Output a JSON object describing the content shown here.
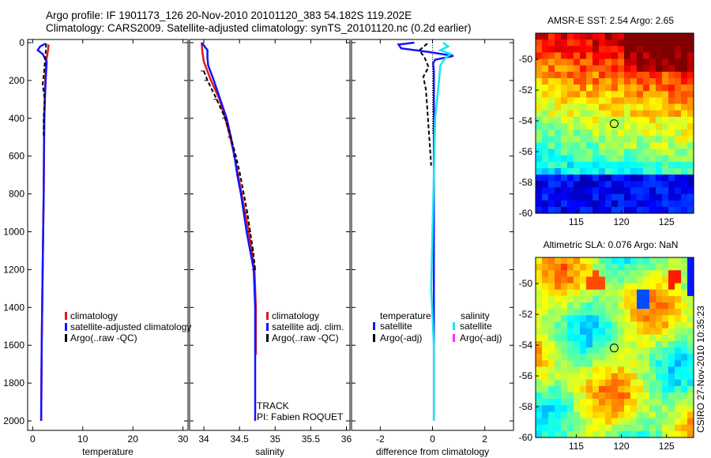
{
  "header": {
    "line1": "Argo profile: IF 1901173_126 20-Nov-2010 20101120_383 54.182S 119.202E",
    "line2": "Climatology: CARS2009. Satellite-adjusted climatology: synTS_20101120.nc (0.2d earlier)"
  },
  "side_label": "CSIRO 27-Nov-2010 10:35:23",
  "colors": {
    "clim": "#e01a1a",
    "sat": "#1414ff",
    "argo": "#000000",
    "sal_sat": "#19e5ef",
    "sal_argo": "#ff2bff"
  },
  "chart_data": [
    {
      "type": "line",
      "id": "temperature",
      "xlabel": "temperature",
      "xlim": [
        -1,
        31
      ],
      "ylim": [
        2050,
        0
      ],
      "xticks": [
        "0",
        "10",
        "20",
        "30"
      ],
      "xtick_values": [
        0,
        10,
        20,
        30
      ],
      "yticks": [
        "0",
        "200",
        "400",
        "600",
        "800",
        "1000",
        "1200",
        "1400",
        "1600",
        "1800",
        "2000"
      ],
      "ytick_values": [
        0,
        200,
        400,
        600,
        800,
        1000,
        1200,
        1400,
        1600,
        1800,
        2000
      ],
      "series": [
        {
          "name": "climatology",
          "style": "clim",
          "depth": [
            10,
            50,
            100,
            150,
            200,
            300,
            500,
            800,
            1200,
            1600,
            2000
          ],
          "values": [
            3.2,
            3.0,
            2.7,
            2.6,
            2.5,
            2.4,
            2.3,
            2.2,
            2.0,
            1.8,
            1.7
          ]
        },
        {
          "name": "satellite-adjusted climatology",
          "style": "sat",
          "depth": [
            5,
            20,
            40,
            60,
            100,
            200,
            400,
            800,
            1200,
            1600,
            2000
          ],
          "values": [
            2.6,
            1.5,
            1.0,
            2.0,
            2.8,
            2.6,
            2.3,
            2.2,
            2.0,
            1.8,
            1.7
          ]
        },
        {
          "name": "Argo(..raw -QC)",
          "style": "argo",
          "depth": [
            5,
            50,
            150,
            220,
            300,
            400,
            500
          ],
          "values": [
            2.7,
            2.6,
            2.3,
            2.0,
            2.4,
            2.2,
            2.2
          ]
        }
      ],
      "legend": [
        "climatology",
        "satellite-adjusted climatology",
        "Argo(..raw -QC)"
      ]
    },
    {
      "type": "line",
      "id": "salinity",
      "xlabel": "salinity",
      "xlim": [
        33.8,
        36.05
      ],
      "ylim": [
        2050,
        0
      ],
      "xticks": [
        "34",
        "34.5",
        "35",
        "35.5",
        "36"
      ],
      "xtick_values": [
        34,
        34.5,
        35,
        35.5,
        36
      ],
      "series": [
        {
          "name": "climatology",
          "style": "clim",
          "depth": [
            0,
            50,
            100,
            200,
            300,
            400,
            500,
            600,
            700,
            800,
            900,
            1000,
            1100,
            1200,
            1400,
            1600,
            1650
          ],
          "values": [
            33.97,
            33.98,
            34.0,
            34.1,
            34.22,
            34.3,
            34.37,
            34.43,
            34.48,
            34.53,
            34.58,
            34.63,
            34.67,
            34.71,
            34.73,
            34.73,
            34.73
          ]
        },
        {
          "name": "satellite adj. clim.",
          "style": "sat",
          "depth": [
            0,
            40,
            80,
            120,
            200,
            300,
            400,
            500,
            600,
            700,
            800,
            900,
            1000,
            1100,
            1200,
            1400,
            1600,
            1800,
            2000
          ],
          "values": [
            33.97,
            34.05,
            34.05,
            34.06,
            34.14,
            34.23,
            34.32,
            34.38,
            34.43,
            34.47,
            34.52,
            34.56,
            34.6,
            34.65,
            34.7,
            34.72,
            34.72,
            34.72,
            34.72
          ]
        },
        {
          "name": "Argo(..raw -QC)",
          "style": "argo",
          "depth": [
            150,
            200,
            300,
            400,
            500,
            600,
            700,
            800,
            900,
            1000,
            1100,
            1200
          ],
          "values": [
            34.0,
            34.05,
            34.18,
            34.3,
            34.38,
            34.45,
            34.51,
            34.56,
            34.61,
            34.65,
            34.69,
            34.72
          ]
        }
      ],
      "legend": [
        "climatology",
        "satellite adj. clim.",
        "Argo(..raw -QC)"
      ],
      "annotations": [
        "TRACK",
        "PI: Fabien ROQUET"
      ]
    },
    {
      "type": "line",
      "id": "difference",
      "xlabel": "difference from climatology",
      "xlim": [
        -3.1,
        3.1
      ],
      "ylim": [
        2050,
        0
      ],
      "xticks": [
        "-2",
        "0",
        "2"
      ],
      "xtick_values": [
        -2,
        0,
        2
      ],
      "series": [
        {
          "name": "temperature satellite",
          "style": "sat",
          "depth": [
            0,
            10,
            30,
            50,
            70,
            90,
            110,
            150,
            250,
            500,
            1000,
            1500,
            2000
          ],
          "values": [
            -0.7,
            -1.3,
            -1.2,
            -0.1,
            0.8,
            0.1,
            0.02,
            0.05,
            0.05,
            0.05,
            0.05,
            0.05,
            0.05
          ]
        },
        {
          "name": "temperature Argo(-adj)",
          "style": "argo",
          "depth": [
            5,
            40,
            80,
            130,
            180,
            250,
            350,
            450,
            550,
            650
          ],
          "values": [
            -0.2,
            -0.5,
            -0.3,
            -0.15,
            -0.35,
            -0.25,
            -0.2,
            -0.15,
            -0.1,
            -0.05
          ]
        },
        {
          "name": "salinity satellite",
          "style": "sal_sat",
          "depth": [
            0,
            20,
            40,
            60,
            80,
            120,
            200,
            400,
            700,
            1000,
            1300,
            1600,
            2000
          ],
          "values": [
            0.4,
            0.6,
            0.3,
            0.7,
            0.5,
            0.3,
            0.25,
            0.1,
            0.05,
            0.0,
            -0.05,
            0.05,
            0.05
          ]
        }
      ],
      "legend_temperature_title": "temperature",
      "legend_salinity_title": "salinity",
      "legend": [
        {
          "label": "satellite",
          "style": "sat"
        },
        {
          "label": "Argo(-adj)",
          "style": "argo"
        },
        {
          "label": "satellite",
          "style": "sal_sat"
        },
        {
          "label": "Argo(-adj)",
          "style": "sal_argo"
        }
      ]
    },
    {
      "type": "heatmap",
      "id": "sst_map",
      "title": "AMSR-E SST: 2.54 Argo: 2.65",
      "xlim": [
        110.5,
        128
      ],
      "ylim": [
        -60,
        -48.3
      ],
      "xticks": [
        "115",
        "120",
        "125"
      ],
      "xtick_values": [
        115,
        120,
        125
      ],
      "yticks": [
        "-50",
        "-52",
        "-54",
        "-56",
        "-58",
        "-60"
      ],
      "ytick_values": [
        -50,
        -52,
        -54,
        -56,
        -58,
        -60
      ],
      "marker": {
        "lon": 119.2,
        "lat": -54.18
      }
    },
    {
      "type": "heatmap",
      "id": "sla_map",
      "title": "Altimetric SLA: 0.076 Argo: NaN",
      "xlim": [
        110.5,
        128
      ],
      "ylim": [
        -60,
        -48.3
      ],
      "xticks": [
        "115",
        "120",
        "125"
      ],
      "xtick_values": [
        115,
        120,
        125
      ],
      "yticks": [
        "-50",
        "-52",
        "-54",
        "-56",
        "-58",
        "-60"
      ],
      "ytick_values": [
        -50,
        -52,
        -54,
        -56,
        -58,
        -60
      ],
      "marker": {
        "lon": 119.2,
        "lat": -54.18
      }
    }
  ]
}
